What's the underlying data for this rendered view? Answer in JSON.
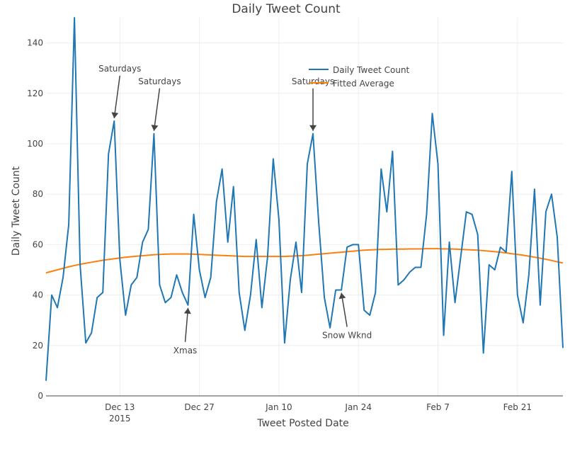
{
  "chart_data": {
    "type": "line",
    "title": "Daily Tweet Count",
    "xlabel": "Tweet Posted Date",
    "ylabel": "Daily Tweet Count",
    "xlim": [
      "2014-11-30",
      "2015-03-01"
    ],
    "ylim": [
      0,
      150
    ],
    "grid": true,
    "legend_position": "top-right",
    "x_ticks": [
      {
        "date": "2014-12-13",
        "label": "Dec 13",
        "sublabel": "2015"
      },
      {
        "date": "2014-12-27",
        "label": "Dec 27",
        "sublabel": ""
      },
      {
        "date": "2015-01-10",
        "label": "Jan 10",
        "sublabel": ""
      },
      {
        "date": "2015-01-24",
        "label": "Jan 24",
        "sublabel": ""
      },
      {
        "date": "2015-02-07",
        "label": "Feb 7",
        "sublabel": ""
      },
      {
        "date": "2015-02-21",
        "label": "Feb 21",
        "sublabel": ""
      }
    ],
    "y_ticks": [
      0,
      20,
      40,
      60,
      80,
      100,
      120,
      140
    ],
    "x": [
      "2014-11-30",
      "2014-12-01",
      "2014-12-02",
      "2014-12-03",
      "2014-12-04",
      "2014-12-05",
      "2014-12-06",
      "2014-12-07",
      "2014-12-08",
      "2014-12-09",
      "2014-12-10",
      "2014-12-11",
      "2014-12-12",
      "2014-12-13",
      "2014-12-14",
      "2014-12-15",
      "2014-12-16",
      "2014-12-17",
      "2014-12-18",
      "2014-12-19",
      "2014-12-20",
      "2014-12-21",
      "2014-12-22",
      "2014-12-23",
      "2014-12-24",
      "2014-12-25",
      "2014-12-26",
      "2014-12-27",
      "2014-12-28",
      "2014-12-29",
      "2014-12-30",
      "2014-12-31",
      "2015-01-01",
      "2015-01-02",
      "2015-01-03",
      "2015-01-04",
      "2015-01-05",
      "2015-01-06",
      "2015-01-07",
      "2015-01-08",
      "2015-01-09",
      "2015-01-10",
      "2015-01-11",
      "2015-01-12",
      "2015-01-13",
      "2015-01-14",
      "2015-01-15",
      "2015-01-16",
      "2015-01-17",
      "2015-01-18",
      "2015-01-19",
      "2015-01-20",
      "2015-01-21",
      "2015-01-22",
      "2015-01-23",
      "2015-01-24",
      "2015-01-25",
      "2015-01-26",
      "2015-01-27",
      "2015-01-28",
      "2015-01-29",
      "2015-01-30",
      "2015-01-31",
      "2015-02-01",
      "2015-02-02",
      "2015-02-03",
      "2015-02-04",
      "2015-02-05",
      "2015-02-06",
      "2015-02-07",
      "2015-02-08",
      "2015-02-09",
      "2015-02-10",
      "2015-02-11",
      "2015-02-12",
      "2015-02-13",
      "2015-02-14",
      "2015-02-15",
      "2015-02-16",
      "2015-02-17",
      "2015-02-18",
      "2015-02-19",
      "2015-02-20",
      "2015-02-21",
      "2015-02-22",
      "2015-02-23",
      "2015-02-24",
      "2015-02-25",
      "2015-02-26",
      "2015-02-27",
      "2015-02-28",
      "2015-03-01"
    ],
    "series": [
      {
        "name": "Daily Tweet Count",
        "color": "#1f77b4",
        "values": [
          6,
          40,
          35,
          47,
          68,
          150,
          52,
          21,
          25,
          39,
          41,
          96,
          109,
          54,
          32,
          44,
          47,
          61,
          66,
          104,
          44,
          37,
          39,
          48,
          41,
          36,
          72,
          50,
          39,
          47,
          77,
          90,
          61,
          83,
          41,
          26,
          40,
          62,
          35,
          55,
          94,
          70,
          21,
          46,
          61,
          41,
          92,
          104,
          69,
          39,
          27,
          42,
          42,
          59,
          60,
          60,
          34,
          32,
          41,
          90,
          73,
          97,
          44,
          46,
          49,
          51,
          51,
          72,
          112,
          92,
          24,
          61,
          37,
          55,
          73,
          72,
          64,
          17,
          52,
          50,
          59,
          57,
          89,
          40,
          29,
          48,
          82,
          36,
          73,
          80,
          63,
          19
        ]
      },
      {
        "name": "Fitted Average",
        "color": "#ff7f0e",
        "values": [
          48.8,
          49.4,
          50.0,
          50.6,
          51.2,
          51.7,
          52.2,
          52.6,
          53.0,
          53.4,
          53.8,
          54.1,
          54.4,
          54.7,
          55.0,
          55.2,
          55.4,
          55.6,
          55.8,
          56.0,
          56.1,
          56.2,
          56.3,
          56.3,
          56.3,
          56.3,
          56.2,
          56.1,
          56.0,
          55.9,
          55.8,
          55.7,
          55.6,
          55.5,
          55.4,
          55.3,
          55.3,
          55.3,
          55.3,
          55.3,
          55.3,
          55.3,
          55.3,
          55.4,
          55.5,
          55.6,
          55.8,
          56.0,
          56.2,
          56.4,
          56.6,
          56.8,
          57.0,
          57.2,
          57.4,
          57.6,
          57.8,
          57.9,
          58.0,
          58.1,
          58.1,
          58.2,
          58.2,
          58.2,
          58.3,
          58.3,
          58.3,
          58.4,
          58.4,
          58.4,
          58.3,
          58.3,
          58.2,
          58.1,
          58.0,
          57.9,
          57.8,
          57.6,
          57.4,
          57.2,
          57.0,
          56.7,
          56.4,
          56.1,
          55.8,
          55.4,
          55.0,
          54.6,
          54.2,
          53.7,
          53.2,
          52.7
        ]
      }
    ],
    "annotations": [
      {
        "text": "Saturdays",
        "date": "2014-12-12",
        "value": 109,
        "direction": "up"
      },
      {
        "text": "Saturdays",
        "date": "2014-12-19",
        "value": 104,
        "direction": "up"
      },
      {
        "text": "Xmas",
        "date": "2014-12-25",
        "value": 36,
        "direction": "down"
      },
      {
        "text": "Saturdays",
        "date": "2015-01-16",
        "value": 104,
        "direction": "up"
      },
      {
        "text": "Snow Wknd",
        "date": "2015-01-21",
        "value": 42,
        "direction": "down"
      }
    ]
  }
}
